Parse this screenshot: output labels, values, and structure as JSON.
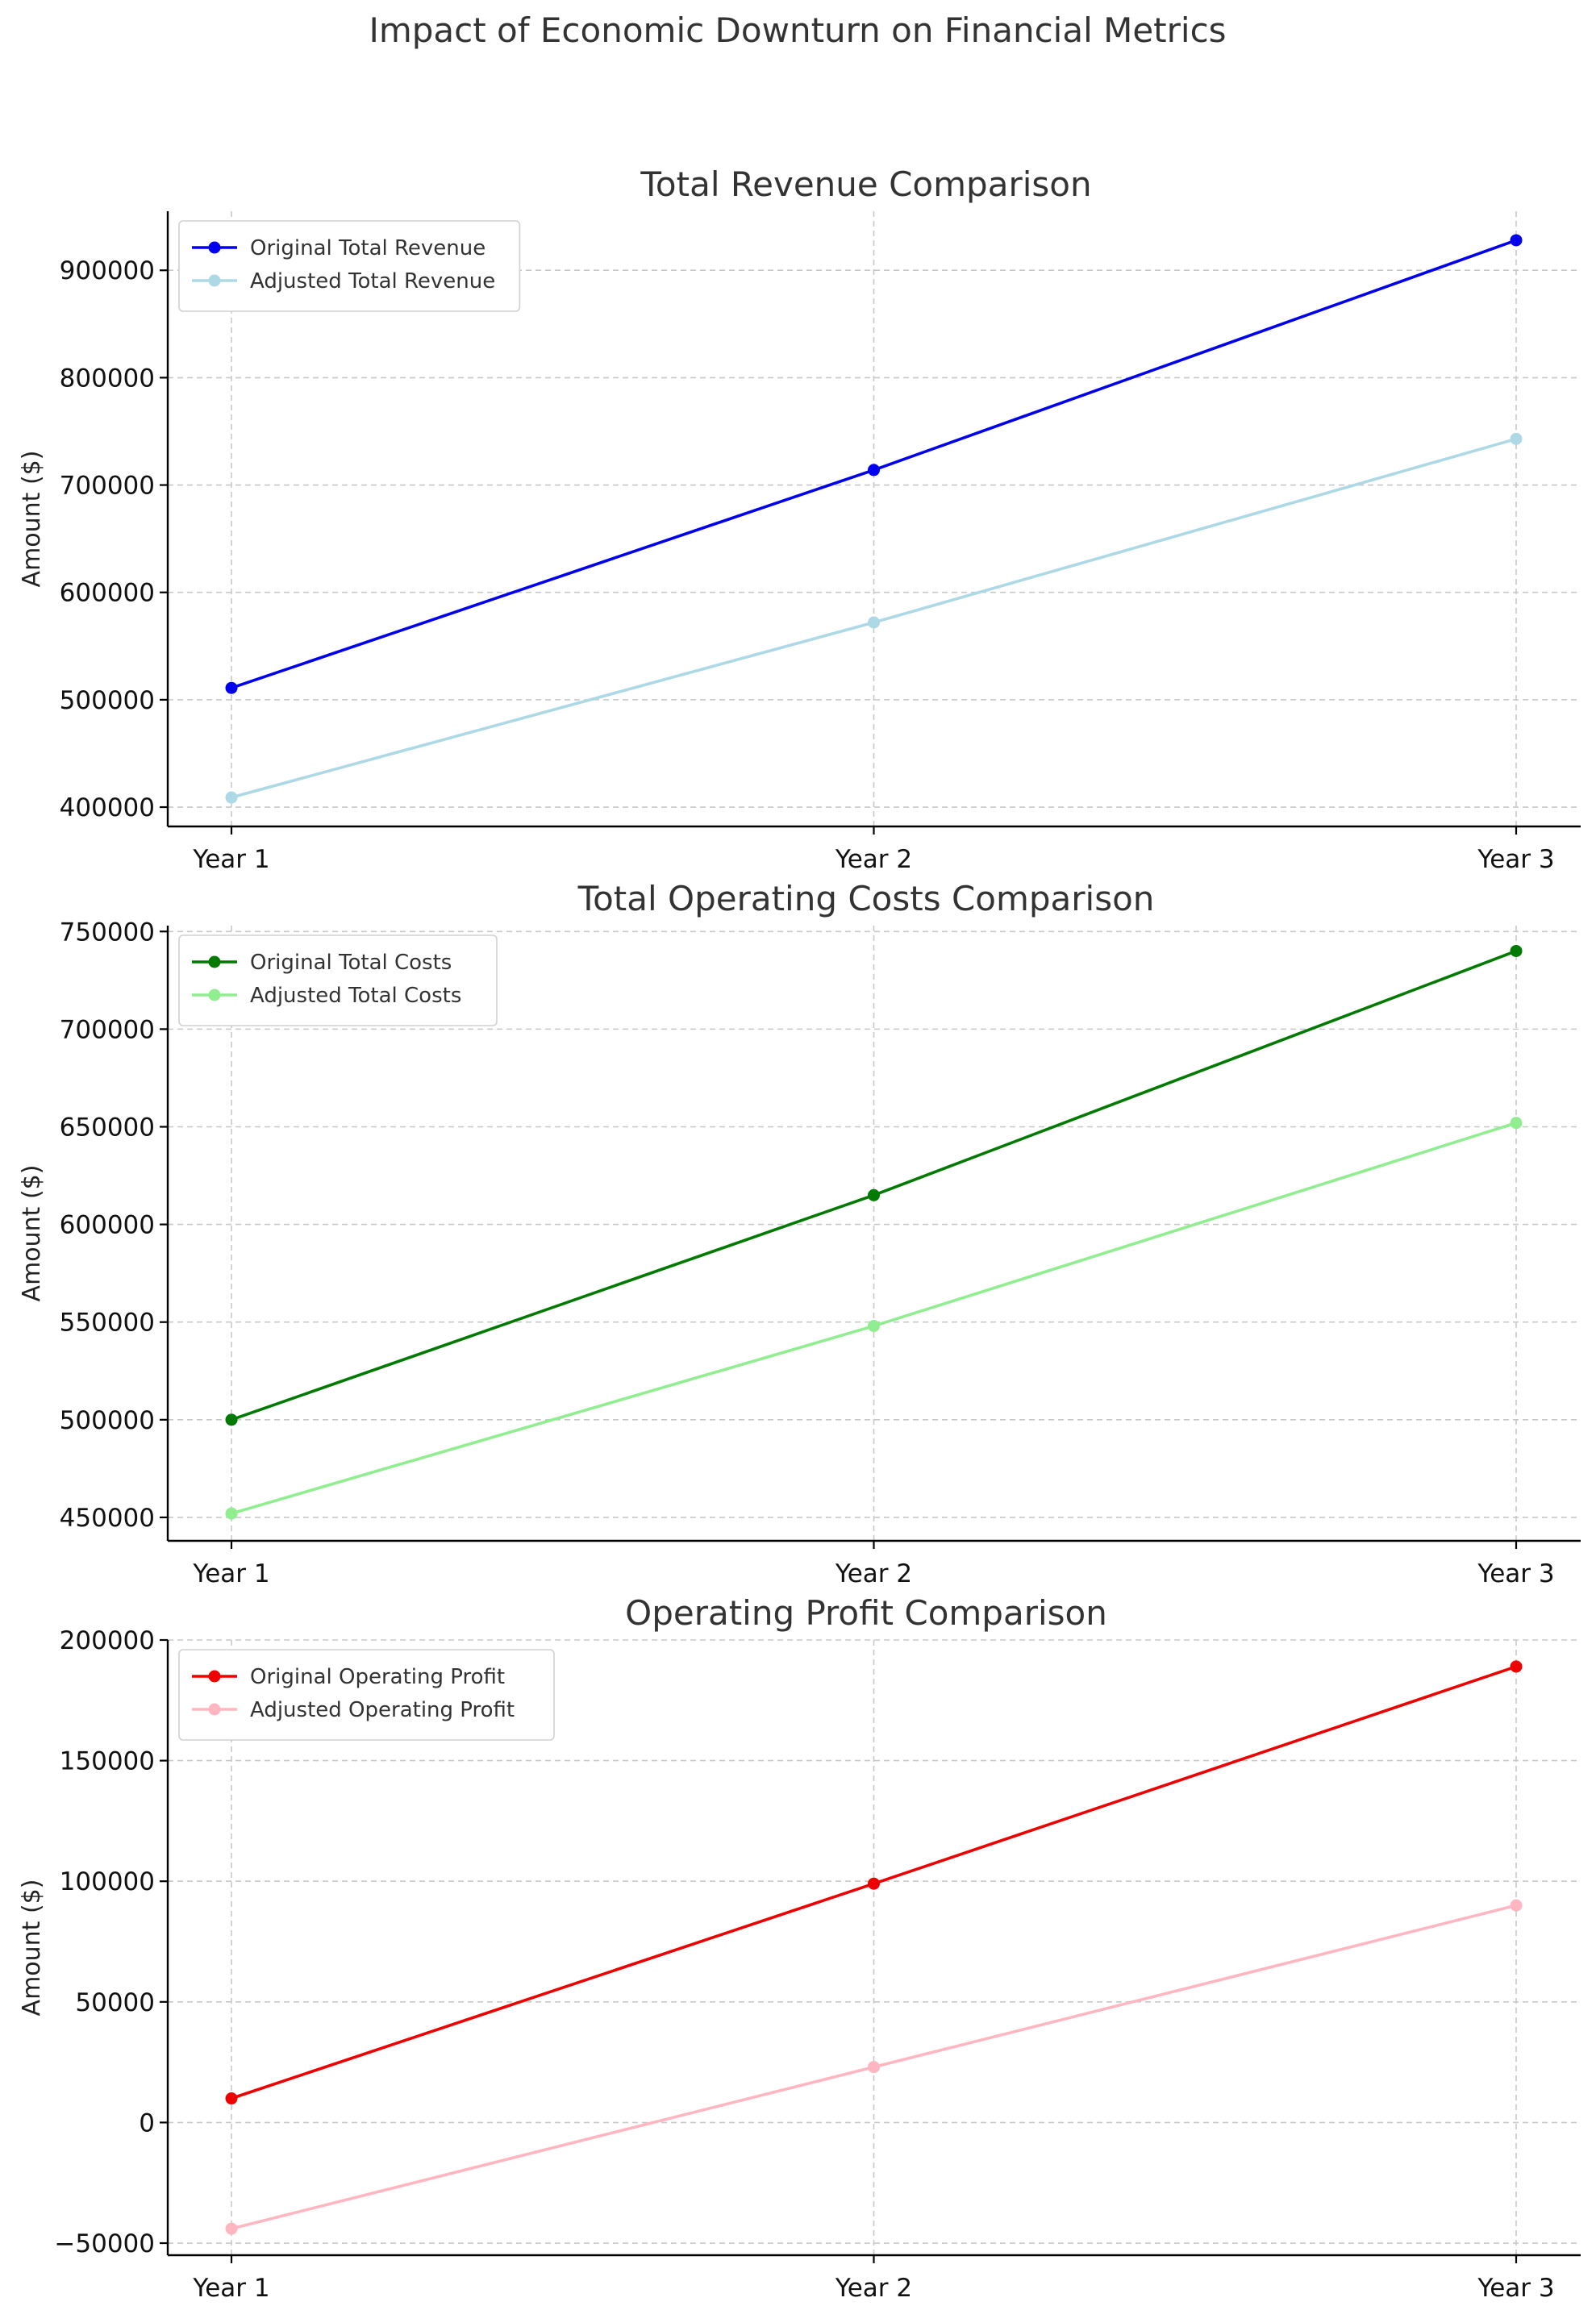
{
  "figure_title": "Impact of Economic Downturn on Financial Metrics",
  "chart_data": [
    {
      "type": "line",
      "title": "Total Revenue Comparison",
      "xlabel": "",
      "ylabel": "Amount ($)",
      "categories": [
        "Year 1",
        "Year 2",
        "Year 3"
      ],
      "ylim": [
        382000,
        955000
      ],
      "yticks": [
        400000,
        500000,
        600000,
        700000,
        800000,
        900000
      ],
      "ytick_labels": [
        "400000",
        "500000",
        "600000",
        "700000",
        "800000",
        "900000"
      ],
      "grid": true,
      "legend": "upper left",
      "series": [
        {
          "name": "Original Total Revenue",
          "color": "#0000ee",
          "values": [
            511000,
            714000,
            928000
          ]
        },
        {
          "name": "Adjusted Total Revenue",
          "color": "#add8e6",
          "values": [
            409000,
            572000,
            743000
          ]
        }
      ]
    },
    {
      "type": "line",
      "title": "Total Operating Costs Comparison",
      "xlabel": "",
      "ylabel": "Amount ($)",
      "categories": [
        "Year 1",
        "Year 2",
        "Year 3"
      ],
      "ylim": [
        438000,
        753000
      ],
      "yticks": [
        450000,
        500000,
        550000,
        600000,
        650000,
        700000,
        750000
      ],
      "ytick_labels": [
        "450000",
        "500000",
        "550000",
        "600000",
        "650000",
        "700000",
        "750000"
      ],
      "grid": true,
      "legend": "upper left",
      "series": [
        {
          "name": "Original Total Costs",
          "color": "#007a00",
          "values": [
            500000,
            615000,
            740000
          ]
        },
        {
          "name": "Adjusted Total Costs",
          "color": "#90ee90",
          "values": [
            452000,
            548000,
            652000
          ]
        }
      ]
    },
    {
      "type": "line",
      "title": "Operating Profit Comparison",
      "xlabel": "",
      "ylabel": "Amount ($)",
      "categories": [
        "Year 1",
        "Year 2",
        "Year 3"
      ],
      "ylim": [
        -55000,
        200000
      ],
      "yticks": [
        -50000,
        0,
        50000,
        100000,
        150000,
        200000
      ],
      "ytick_labels": [
        "−50000",
        "0",
        "50000",
        "100000",
        "150000",
        "200000"
      ],
      "grid": true,
      "legend": "upper left",
      "series": [
        {
          "name": "Original Operating Profit",
          "color": "#ee0000",
          "values": [
            10000,
            99000,
            189000
          ]
        },
        {
          "name": "Adjusted Operating Profit",
          "color": "#ffb6c1",
          "values": [
            -44000,
            23000,
            90000
          ]
        }
      ]
    }
  ]
}
